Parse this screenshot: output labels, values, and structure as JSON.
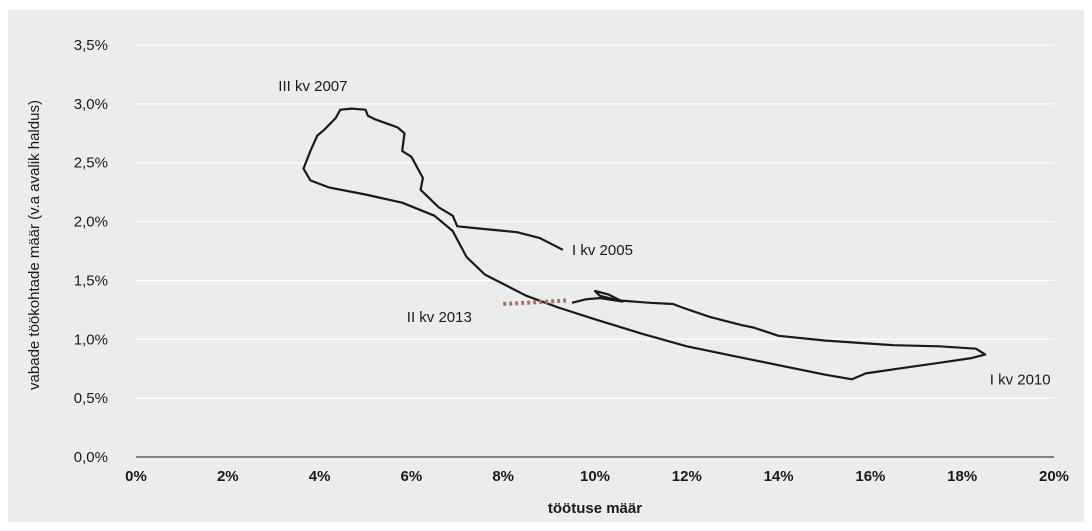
{
  "chart_data": {
    "type": "line",
    "xlabel": "töötuse määr",
    "ylabel": "vabade töökohtade määr (v.a avalik haldus)",
    "xlim": [
      0,
      20
    ],
    "ylim": [
      0,
      3.5
    ],
    "x_ticks": [
      "0%",
      "2%",
      "4%",
      "6%",
      "8%",
      "10%",
      "12%",
      "14%",
      "16%",
      "18%",
      "20%"
    ],
    "y_ticks": [
      "0,0%",
      "0,5%",
      "1,0%",
      "1,5%",
      "2,0%",
      "2,5%",
      "3,0%",
      "3,5%"
    ],
    "grid": "horizontal",
    "colors": {
      "main": "#1a1a1a",
      "recent": "#b0705a",
      "background": "#ececec",
      "grid": "#ffffff"
    },
    "series": [
      {
        "style": "solid",
        "points": [
          [
            9.3,
            1.76
          ],
          [
            8.8,
            1.86
          ],
          [
            8.3,
            1.91
          ],
          [
            7.5,
            1.94
          ],
          [
            7.0,
            1.96
          ],
          [
            6.9,
            2.05
          ],
          [
            6.6,
            2.12
          ],
          [
            6.2,
            2.27
          ],
          [
            6.25,
            2.37
          ],
          [
            6.0,
            2.55
          ],
          [
            5.8,
            2.6
          ],
          [
            5.85,
            2.75
          ],
          [
            5.7,
            2.8
          ],
          [
            5.2,
            2.87
          ],
          [
            5.05,
            2.9
          ],
          [
            5.0,
            2.95
          ],
          [
            4.7,
            2.96
          ],
          [
            4.45,
            2.95
          ],
          [
            4.35,
            2.88
          ],
          [
            4.1,
            2.78
          ],
          [
            3.95,
            2.73
          ],
          [
            3.8,
            2.6
          ],
          [
            3.65,
            2.45
          ],
          [
            3.8,
            2.35
          ],
          [
            4.2,
            2.29
          ],
          [
            5.0,
            2.23
          ],
          [
            5.8,
            2.16
          ],
          [
            6.5,
            2.05
          ],
          [
            6.9,
            1.92
          ],
          [
            7.2,
            1.7
          ],
          [
            7.6,
            1.55
          ],
          [
            8.5,
            1.37
          ],
          [
            9.2,
            1.27
          ],
          [
            10.0,
            1.17
          ],
          [
            11.0,
            1.05
          ],
          [
            12.0,
            0.94
          ],
          [
            13.0,
            0.86
          ],
          [
            14.0,
            0.78
          ],
          [
            15.0,
            0.7
          ],
          [
            15.6,
            0.66
          ],
          [
            15.9,
            0.71
          ],
          [
            16.6,
            0.75
          ],
          [
            17.5,
            0.8
          ],
          [
            18.2,
            0.84
          ],
          [
            18.5,
            0.87
          ],
          [
            18.3,
            0.92
          ],
          [
            17.5,
            0.94
          ],
          [
            16.5,
            0.95
          ],
          [
            15.0,
            0.99
          ],
          [
            14.0,
            1.03
          ],
          [
            13.45,
            1.1
          ],
          [
            13.2,
            1.12
          ],
          [
            12.5,
            1.19
          ],
          [
            11.9,
            1.27
          ],
          [
            11.7,
            1.3
          ],
          [
            11.2,
            1.31
          ],
          [
            10.5,
            1.33
          ],
          [
            10.1,
            1.37
          ],
          [
            10.0,
            1.41
          ],
          [
            10.3,
            1.38
          ],
          [
            10.6,
            1.32
          ],
          [
            10.1,
            1.35
          ],
          [
            9.8,
            1.34
          ],
          [
            9.5,
            1.31
          ]
        ]
      },
      {
        "style": "dotted",
        "points": [
          [
            8.0,
            1.3
          ],
          [
            8.5,
            1.31
          ],
          [
            9.0,
            1.32
          ],
          [
            9.4,
            1.33
          ]
        ]
      }
    ],
    "annotations": [
      {
        "text": "I kv 2005",
        "x": 9.5,
        "y": 1.76
      },
      {
        "text": "III kv 2007",
        "x": 3.1,
        "y": 3.15
      },
      {
        "text": "II kv 2013",
        "x": 5.9,
        "y": 1.19
      },
      {
        "text": "I kv 2010",
        "x": 18.6,
        "y": 0.66
      }
    ]
  }
}
